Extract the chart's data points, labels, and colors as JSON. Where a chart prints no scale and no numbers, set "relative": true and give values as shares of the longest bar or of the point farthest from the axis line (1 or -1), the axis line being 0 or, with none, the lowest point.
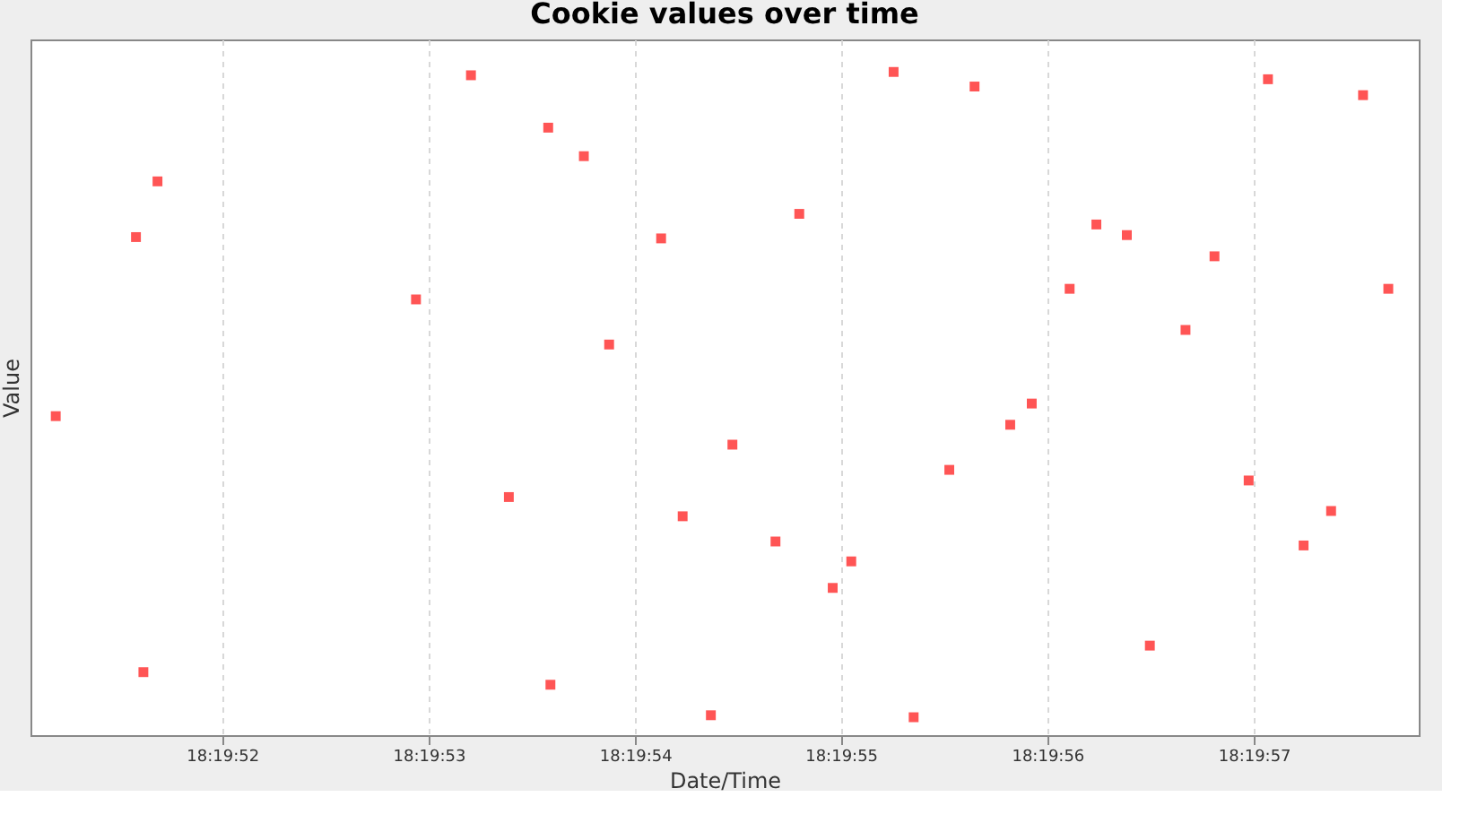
{
  "chart_data": {
    "type": "scatter",
    "title": "Cookie values over time",
    "xlabel": "Date/Time",
    "ylabel": "Value",
    "relative": true,
    "marker": "square",
    "grid": "x",
    "tick_labels": "x",
    "xlim": [
      18.330853,
      18.332722
    ],
    "xticks": [
      {
        "value": 18.331111,
        "label": "18:19:52"
      },
      {
        "value": 18.331389,
        "label": "18:19:53"
      },
      {
        "value": 18.331667,
        "label": "18:19:54"
      },
      {
        "value": 18.331944,
        "label": "18:19:55"
      },
      {
        "value": 18.332222,
        "label": "18:19:56"
      },
      {
        "value": 18.3325,
        "label": "18:19:57"
      }
    ],
    "x": [
      18.330887,
      18.330995,
      18.331005,
      18.331024,
      18.331372,
      18.331446,
      18.331497,
      18.33155,
      18.331553,
      18.331598,
      18.331632,
      18.331702,
      18.331731,
      18.331769,
      18.331798,
      18.331856,
      18.331888,
      18.331933,
      18.331958,
      18.332015,
      18.332042,
      18.33209,
      18.332124,
      18.332172,
      18.332201,
      18.332252,
      18.332288,
      18.332329,
      18.33236,
      18.332408,
      18.332447,
      18.332493,
      18.332519,
      18.332567,
      18.332604,
      18.332647,
      18.332681
    ],
    "series": [
      {
        "color": "#ff5555",
        "values": [
          0.481,
          0.751,
          0.095,
          0.835,
          0.657,
          0.995,
          0.359,
          0.916,
          0.076,
          0.873,
          0.589,
          0.749,
          0.33,
          0.03,
          0.438,
          0.292,
          0.786,
          0.222,
          0.262,
          1,
          0.027,
          0.4,
          0.978,
          0.468,
          0.5,
          0.673,
          0.77,
          0.754,
          0.135,
          0.611,
          0.722,
          0.384,
          0.989,
          0.286,
          0.338,
          0.965,
          0.673
        ]
      }
    ]
  }
}
